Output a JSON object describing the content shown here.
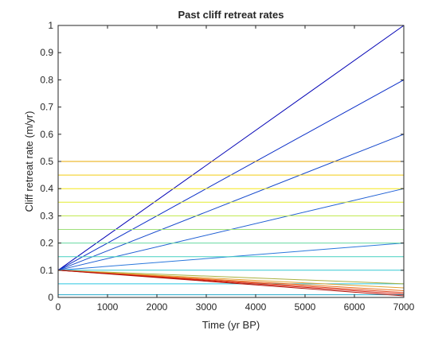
{
  "chart_data": {
    "type": "line",
    "title": "Past cliff retreat rates",
    "xlabel": "Time (yr BP)",
    "ylabel": "Cliff retreat rate (m/yr)",
    "xlim": [
      0,
      7000
    ],
    "ylim": [
      0,
      1
    ],
    "xticks": [
      0,
      1000,
      2000,
      3000,
      4000,
      5000,
      6000,
      7000
    ],
    "yticks": [
      0,
      0.1,
      0.2,
      0.3,
      0.4,
      0.5,
      0.6,
      0.7,
      0.8,
      0.9,
      1
    ],
    "xtick_labels": [
      "0",
      "1000",
      "2000",
      "3000",
      "4000",
      "5000",
      "6000",
      "7000"
    ],
    "ytick_labels": [
      "0",
      "0.1",
      "0.2",
      "0.3",
      "0.4",
      "0.5",
      "0.6",
      "0.7",
      "0.8",
      "0.9",
      "1"
    ],
    "grid": false,
    "legend": "none",
    "series": [
      {
        "x": [
          0,
          7000
        ],
        "y": [
          0.1,
          1.0
        ],
        "color": "#0000b5"
      },
      {
        "x": [
          0,
          7000
        ],
        "y": [
          0.1,
          0.8
        ],
        "color": "#0a2ec8"
      },
      {
        "x": [
          0,
          7000
        ],
        "y": [
          0.1,
          0.6
        ],
        "color": "#1448cc"
      },
      {
        "x": [
          0,
          7000
        ],
        "y": [
          0.1,
          0.4
        ],
        "color": "#1f5fd4"
      },
      {
        "x": [
          0,
          7000
        ],
        "y": [
          0.1,
          0.2
        ],
        "color": "#2a78dc"
      },
      {
        "x": [
          0,
          7000
        ],
        "y": [
          0.5,
          0.5
        ],
        "color": "#e8a800"
      },
      {
        "x": [
          0,
          7000
        ],
        "y": [
          0.45,
          0.45
        ],
        "color": "#f2cc10"
      },
      {
        "x": [
          0,
          7000
        ],
        "y": [
          0.4,
          0.4
        ],
        "color": "#f6e51a"
      },
      {
        "x": [
          0,
          7000
        ],
        "y": [
          0.35,
          0.35
        ],
        "color": "#e4ec30"
      },
      {
        "x": [
          0,
          7000
        ],
        "y": [
          0.3,
          0.3
        ],
        "color": "#bfe84a"
      },
      {
        "x": [
          0,
          7000
        ],
        "y": [
          0.25,
          0.25
        ],
        "color": "#9ee07a"
      },
      {
        "x": [
          0,
          7000
        ],
        "y": [
          0.2,
          0.2
        ],
        "color": "#66d8a0"
      },
      {
        "x": [
          0,
          7000
        ],
        "y": [
          0.15,
          0.15
        ],
        "color": "#44d0c0"
      },
      {
        "x": [
          0,
          7000
        ],
        "y": [
          0.1,
          0.1
        ],
        "color": "#33c8d4"
      },
      {
        "x": [
          0,
          7000
        ],
        "y": [
          0.05,
          0.05
        ],
        "color": "#2bc6e0"
      },
      {
        "x": [
          0,
          7000
        ],
        "y": [
          0.01,
          0.01
        ],
        "color": "#23a8c8"
      },
      {
        "x": [
          0,
          7000
        ],
        "y": [
          0.1,
          0.05
        ],
        "color": "#a8b040"
      },
      {
        "x": [
          0,
          7000
        ],
        "y": [
          0.1,
          0.035
        ],
        "color": "#e0a030"
      },
      {
        "x": [
          0,
          7000
        ],
        "y": [
          0.1,
          0.025
        ],
        "color": "#e87020"
      },
      {
        "x": [
          0,
          7000
        ],
        "y": [
          0.1,
          0.018
        ],
        "color": "#e04018"
      },
      {
        "x": [
          0,
          7000
        ],
        "y": [
          0.1,
          0.012
        ],
        "color": "#d42010"
      },
      {
        "x": [
          0,
          7000
        ],
        "y": [
          0.1,
          0.006
        ],
        "color": "#b01008"
      }
    ]
  }
}
